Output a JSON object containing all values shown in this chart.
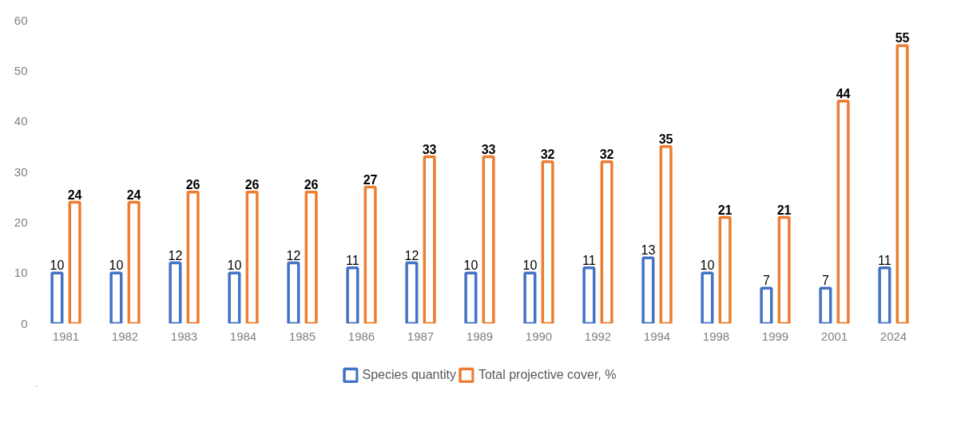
{
  "chart_data": {
    "type": "bar",
    "categories": [
      "1981",
      "1982",
      "1983",
      "1984",
      "1985",
      "1986",
      "1987",
      "1989",
      "1990",
      "1992",
      "1994",
      "1998",
      "1999",
      "2001",
      "2024"
    ],
    "series": [
      {
        "name": "Species quantity",
        "color": "#4472c4",
        "values": [
          10,
          10,
          12,
          10,
          12,
          11,
          12,
          10,
          10,
          11,
          13,
          10,
          7,
          7,
          11
        ]
      },
      {
        "name": "Total projective cover, %",
        "color": "#ed7d31",
        "values": [
          24,
          24,
          26,
          26,
          26,
          27,
          33,
          33,
          32,
          32,
          35,
          21,
          21,
          44,
          55
        ]
      }
    ],
    "ylim": [
      0,
      60
    ],
    "yticks": [
      0,
      10,
      20,
      30,
      40,
      50,
      60
    ],
    "grid": false,
    "legend": "bottom",
    "data_labels": true
  }
}
